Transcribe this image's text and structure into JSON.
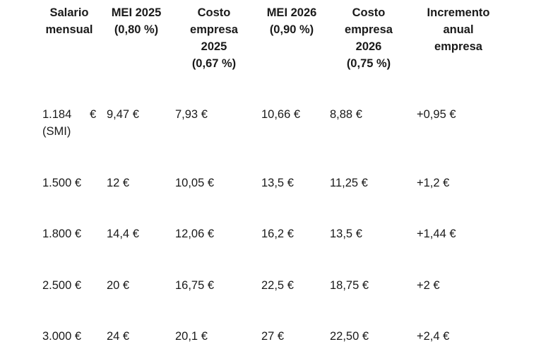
{
  "headers": [
    [
      "Salario",
      "mensual"
    ],
    [
      "MEI 2025",
      "(0,80 %)"
    ],
    [
      "Costo",
      "empresa",
      "2025",
      "(0,67 %)"
    ],
    [
      "MEI 2026",
      "(0,90 %)"
    ],
    [
      "Costo",
      "empresa",
      "2026",
      "(0,75 %)"
    ],
    [
      "Incremento",
      "anual",
      "empresa"
    ]
  ],
  "rows": [
    {
      "salario": "1.184",
      "salario_euro": "€",
      "salario_note": "(SMI)",
      "mei2025": "9,47 €",
      "costo2025": "7,93 €",
      "mei2026": "10,66 €",
      "costo2026": "8,88 €",
      "incremento": "+0,95 €"
    },
    {
      "salario": "1.500 €",
      "mei2025": "12 €",
      "costo2025": "10,05 €",
      "mei2026": "13,5 €",
      "costo2026": "11,25 €",
      "incremento": "+1,2 €"
    },
    {
      "salario": "1.800 €",
      "mei2025": "14,4 €",
      "costo2025": "12,06 €",
      "mei2026": "16,2 €",
      "costo2026": "13,5 €",
      "incremento": "+1,44 €"
    },
    {
      "salario": "2.500 €",
      "mei2025": "20 €",
      "costo2025": "16,75 €",
      "mei2026": "22,5 €",
      "costo2026": "18,75 €",
      "incremento": "+2 €"
    },
    {
      "salario": "3.000 €",
      "mei2025": "24 €",
      "costo2025": "20,1 €",
      "mei2026": "27 €",
      "costo2026": "22,50 €",
      "incremento": "+2,4 €"
    }
  ]
}
